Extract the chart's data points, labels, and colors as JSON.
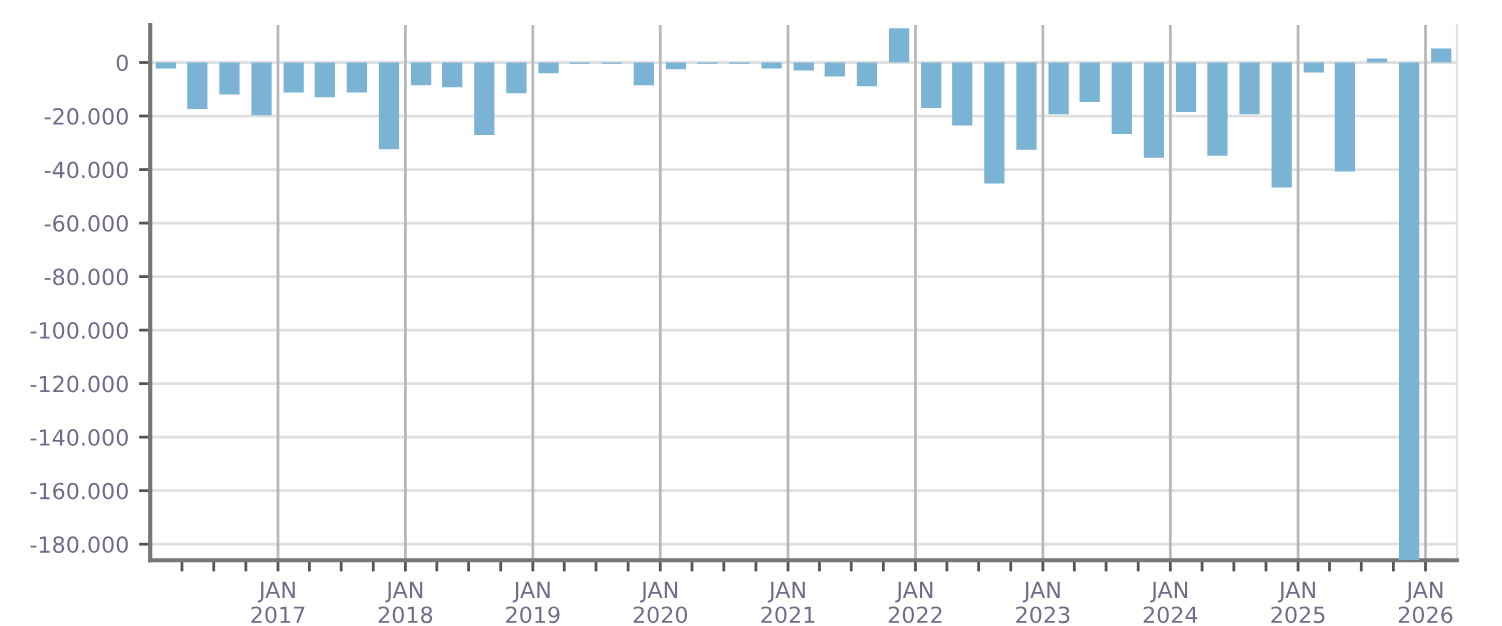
{
  "chart_data": {
    "type": "bar",
    "x": [
      "2016-02-15",
      "2016-05-15",
      "2016-08-15",
      "2016-11-15",
      "2017-02-15",
      "2017-05-15",
      "2017-08-15",
      "2017-11-15",
      "2018-02-15",
      "2018-05-15",
      "2018-08-15",
      "2018-11-15",
      "2019-02-15",
      "2019-05-15",
      "2019-08-15",
      "2019-11-15",
      "2020-02-15",
      "2020-05-15",
      "2020-08-15",
      "2020-11-15",
      "2021-02-15",
      "2021-05-15",
      "2021-08-15",
      "2021-11-15",
      "2022-02-15",
      "2022-05-15",
      "2022-08-15",
      "2022-11-15",
      "2023-02-15",
      "2023-05-15",
      "2023-08-15",
      "2023-11-15",
      "2024-02-15",
      "2024-05-15",
      "2024-08-15",
      "2024-11-15",
      "2025-02-15",
      "2025-05-15",
      "2025-08-15",
      "2025-11-15",
      "2026-02-15"
    ],
    "values": [
      -2200,
      -17400,
      -12000,
      -19700,
      -11200,
      -13000,
      -11200,
      -32400,
      -8500,
      -9200,
      -27100,
      -11500,
      -4000,
      -500,
      -500,
      -8500,
      -2500,
      -500,
      -500,
      -2200,
      -3000,
      -5200,
      -8900,
      12800,
      -17000,
      -23500,
      -45200,
      -32600,
      -19300,
      -14800,
      -26700,
      -35600,
      -18500,
      -34800,
      -19300,
      -46700,
      -3700,
      -40700,
      1500,
      -186000,
      5200
    ],
    "color": "#7ab3d4",
    "xlim": [
      "2016-01-01",
      "2026-04-01"
    ],
    "xticks": [
      {
        "value": "2016-04-01",
        "label": null
      },
      {
        "value": "2016-07-01",
        "label": null
      },
      {
        "value": "2016-10-01",
        "label": null
      },
      {
        "value": "2017-01-01",
        "label": "JAN\n2017"
      },
      {
        "value": "2017-04-01",
        "label": null
      },
      {
        "value": "2017-07-01",
        "label": null
      },
      {
        "value": "2017-10-01",
        "label": null
      },
      {
        "value": "2018-01-01",
        "label": "JAN\n2018"
      },
      {
        "value": "2018-04-01",
        "label": null
      },
      {
        "value": "2018-07-01",
        "label": null
      },
      {
        "value": "2018-10-01",
        "label": null
      },
      {
        "value": "2019-01-01",
        "label": "JAN\n2019"
      },
      {
        "value": "2019-04-01",
        "label": null
      },
      {
        "value": "2019-07-01",
        "label": null
      },
      {
        "value": "2019-10-01",
        "label": null
      },
      {
        "value": "2020-01-01",
        "label": "JAN\n2020"
      },
      {
        "value": "2020-04-01",
        "label": null
      },
      {
        "value": "2020-07-01",
        "label": null
      },
      {
        "value": "2020-10-01",
        "label": null
      },
      {
        "value": "2021-01-01",
        "label": "JAN\n2021"
      },
      {
        "value": "2021-04-01",
        "label": null
      },
      {
        "value": "2021-07-01",
        "label": null
      },
      {
        "value": "2021-10-01",
        "label": null
      },
      {
        "value": "2022-01-01",
        "label": "JAN\n2022"
      },
      {
        "value": "2022-04-01",
        "label": null
      },
      {
        "value": "2022-07-01",
        "label": null
      },
      {
        "value": "2022-10-01",
        "label": null
      },
      {
        "value": "2023-01-01",
        "label": "JAN\n2023"
      },
      {
        "value": "2023-04-01",
        "label": null
      },
      {
        "value": "2023-07-01",
        "label": null
      },
      {
        "value": "2023-10-01",
        "label": null
      },
      {
        "value": "2024-01-01",
        "label": "JAN\n2024"
      },
      {
        "value": "2024-04-01",
        "label": null
      },
      {
        "value": "2024-07-01",
        "label": null
      },
      {
        "value": "2024-10-01",
        "label": null
      },
      {
        "value": "2025-01-01",
        "label": "JAN\n2025"
      },
      {
        "value": "2025-04-01",
        "label": null
      },
      {
        "value": "2025-07-01",
        "label": null
      },
      {
        "value": "2025-10-01",
        "label": null
      },
      {
        "value": "2026-01-01",
        "label": "JAN\n2026"
      }
    ],
    "ylim": [
      -186000,
      14000
    ],
    "yticks": [
      {
        "value": 0,
        "label": "0"
      },
      {
        "value": -20000,
        "label": "-20.000"
      },
      {
        "value": -40000,
        "label": "-40.000"
      },
      {
        "value": -60000,
        "label": "-60.000"
      },
      {
        "value": -80000,
        "label": "-80.000"
      },
      {
        "value": -100000,
        "label": "-100.000"
      },
      {
        "value": -120000,
        "label": "-120.000"
      },
      {
        "value": -140000,
        "label": "-140.000"
      },
      {
        "value": -160000,
        "label": "-160.000"
      },
      {
        "value": -180000,
        "label": "-180.000"
      }
    ],
    "grid": true,
    "legend": false
  }
}
